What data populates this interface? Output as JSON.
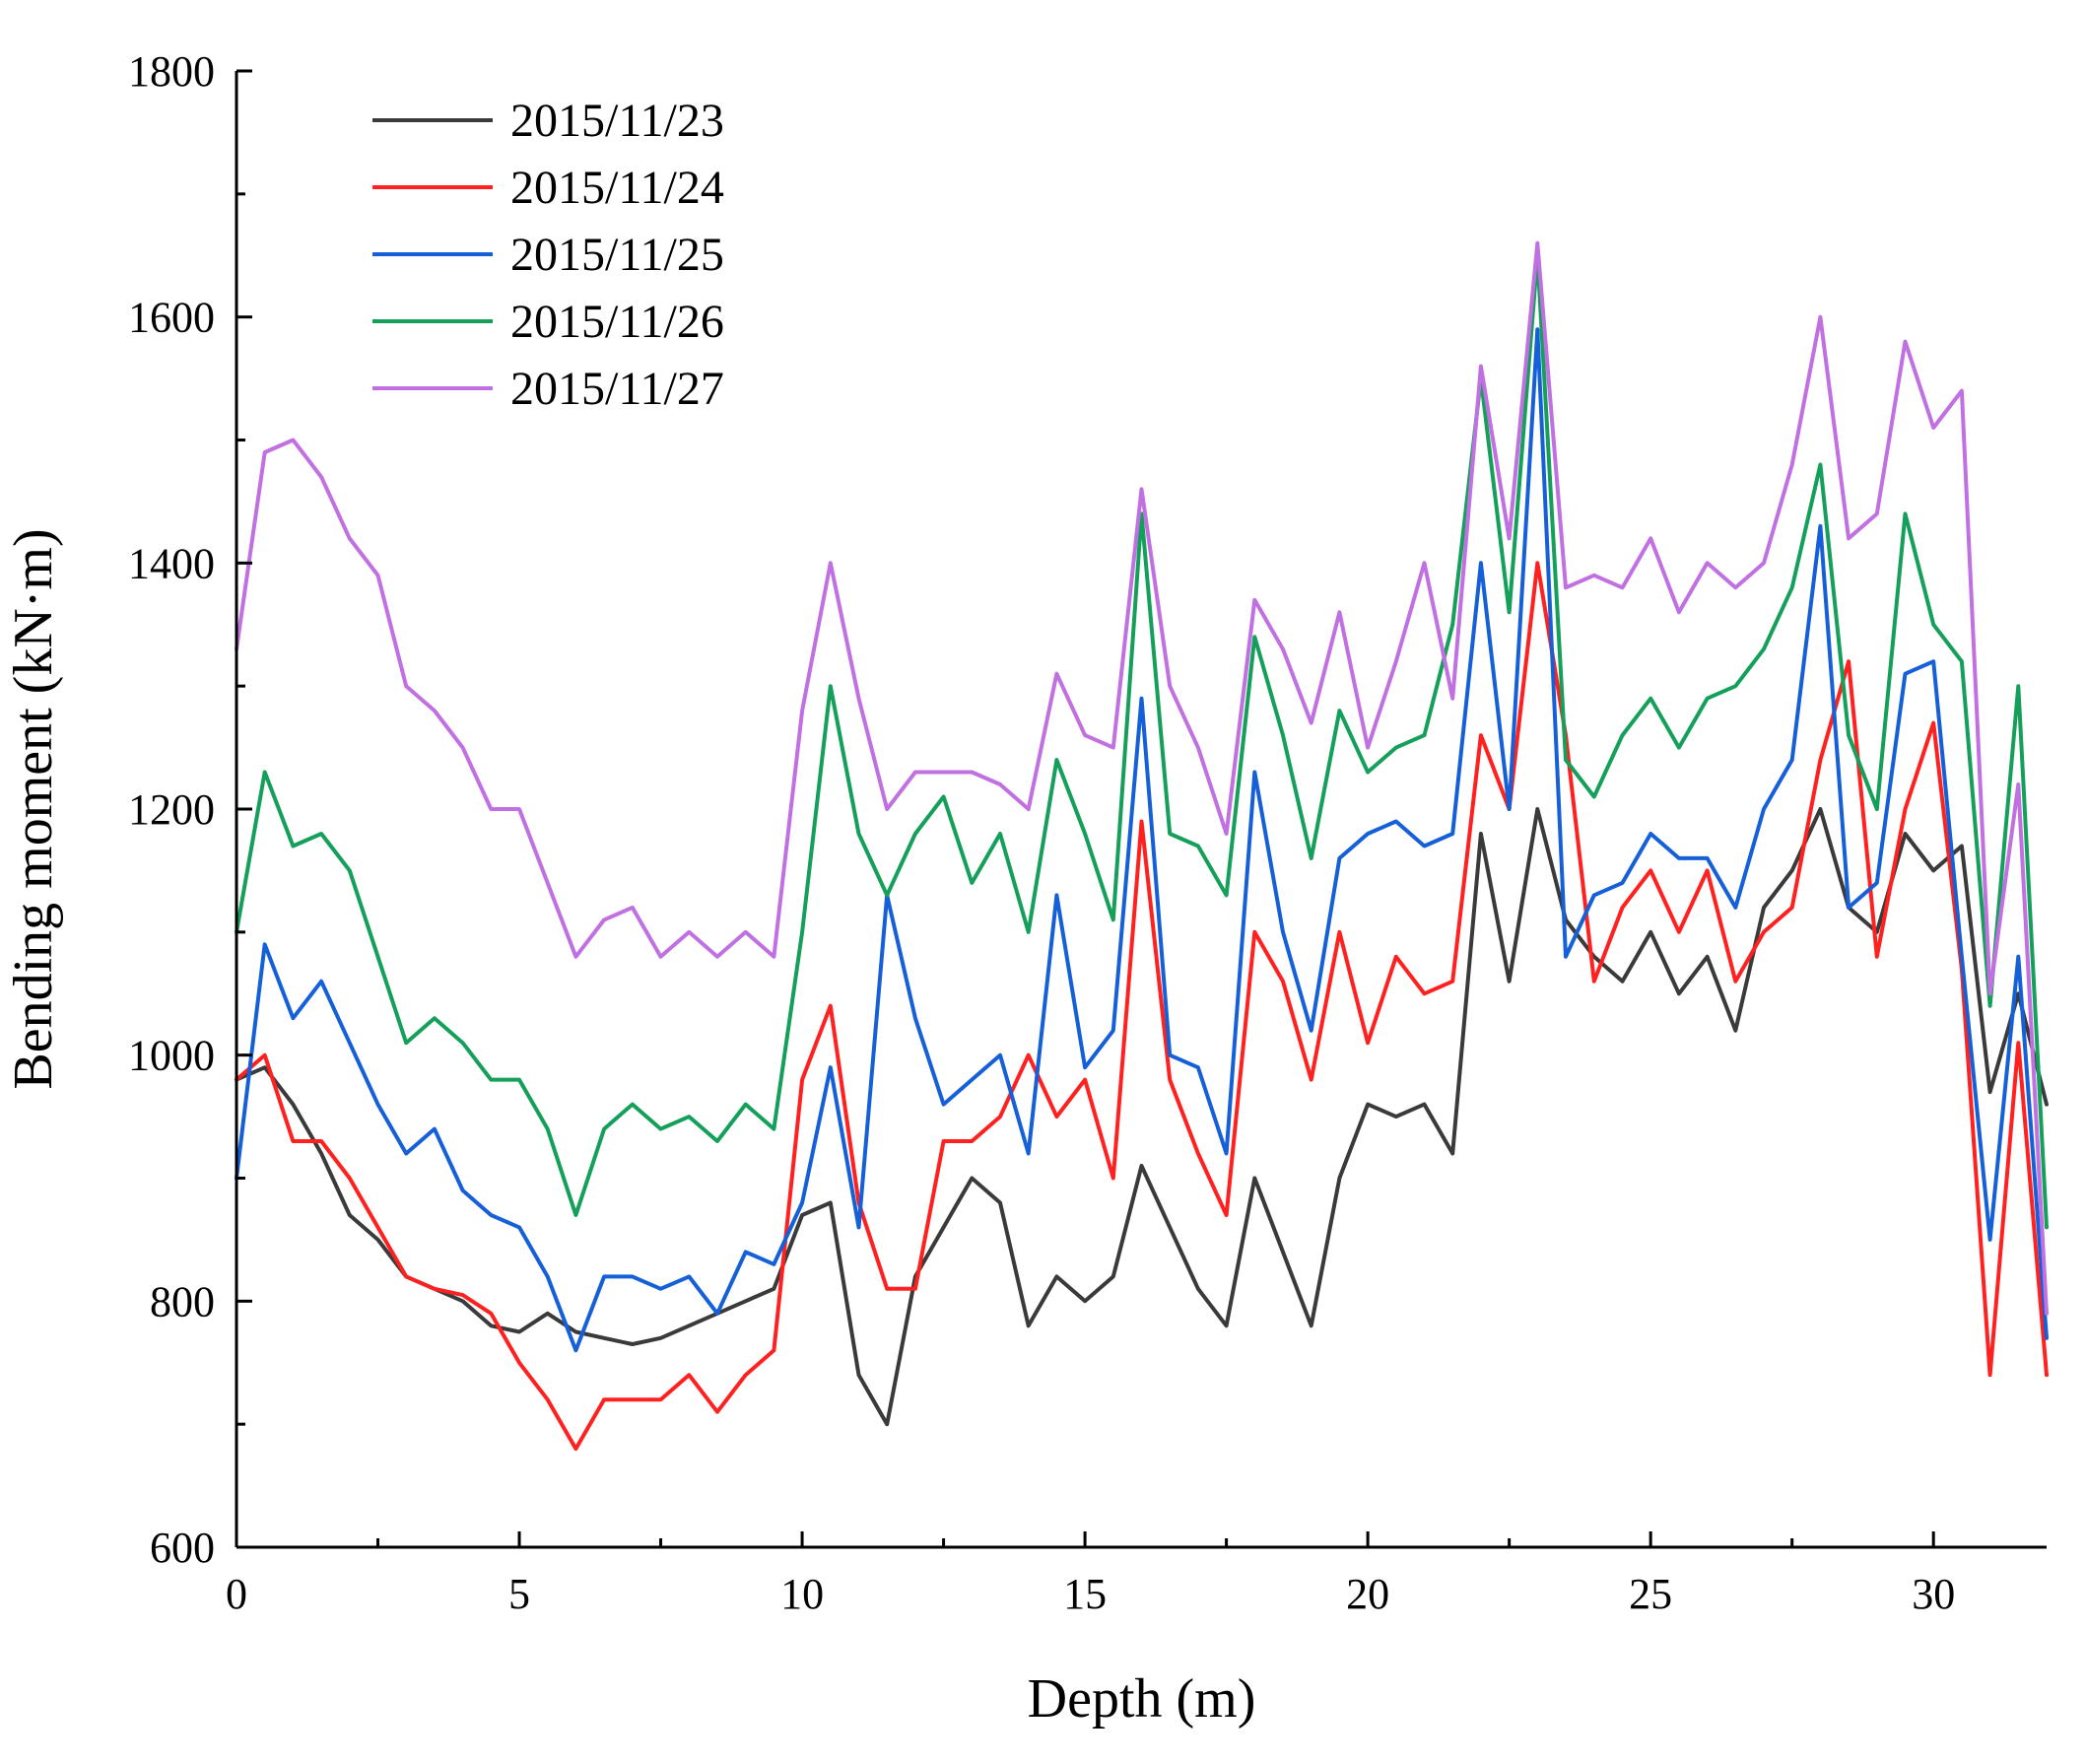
{
  "chart_data": {
    "type": "line",
    "title": "",
    "xlabel": "Depth (m)",
    "ylabel": "Bending moment (kN·m)",
    "xlim": [
      0,
      32
    ],
    "ylim": [
      600,
      1800
    ],
    "x_ticks": [
      {
        "value": 0,
        "label": "0"
      },
      {
        "value": 5,
        "label": "5"
      },
      {
        "value": 10,
        "label": "10"
      },
      {
        "value": 15,
        "label": "15"
      },
      {
        "value": 20,
        "label": "20"
      },
      {
        "value": 25,
        "label": "25"
      },
      {
        "value": 30,
        "label": "30"
      }
    ],
    "y_ticks": [
      {
        "value": 600,
        "label": "600"
      },
      {
        "value": 800,
        "label": "800"
      },
      {
        "value": 1000,
        "label": "1000"
      },
      {
        "value": 1200,
        "label": "1200"
      },
      {
        "value": 1400,
        "label": "1400"
      },
      {
        "value": 1600,
        "label": "1600"
      },
      {
        "value": 1800,
        "label": "1800"
      }
    ],
    "grid": false,
    "legend_position": "top-left",
    "x": [
      0,
      0.5,
      1,
      1.5,
      2,
      2.5,
      3,
      3.5,
      4,
      4.5,
      5,
      5.5,
      6,
      6.5,
      7,
      7.5,
      8,
      8.5,
      9,
      9.5,
      10,
      10.5,
      11,
      11.5,
      12,
      12.5,
      13,
      13.5,
      14,
      14.5,
      15,
      15.5,
      16,
      16.5,
      17,
      17.5,
      18,
      18.5,
      19,
      19.5,
      20,
      20.5,
      21,
      21.5,
      22,
      22.5,
      23,
      23.5,
      24,
      24.5,
      25,
      25.5,
      26,
      26.5,
      27,
      27.5,
      28,
      28.5,
      29,
      29.5,
      30,
      30.5,
      31,
      31.5,
      32
    ],
    "series": [
      {
        "name": "2015/11/23",
        "color": "#3a3a3a",
        "values": [
          980,
          990,
          960,
          920,
          870,
          850,
          820,
          810,
          800,
          780,
          775,
          790,
          775,
          770,
          765,
          770,
          780,
          790,
          800,
          810,
          870,
          880,
          740,
          700,
          820,
          860,
          900,
          880,
          780,
          820,
          800,
          820,
          910,
          860,
          810,
          780,
          900,
          840,
          780,
          900,
          960,
          950,
          960,
          920,
          1180,
          1060,
          1200,
          1110,
          1080,
          1060,
          1100,
          1050,
          1080,
          1020,
          1120,
          1150,
          1200,
          1120,
          1100,
          1180,
          1150,
          1170,
          970,
          1050,
          960
        ]
      },
      {
        "name": "2015/11/24",
        "color": "#ff2020",
        "values": [
          980,
          1000,
          930,
          930,
          900,
          860,
          820,
          810,
          805,
          790,
          750,
          720,
          680,
          720,
          720,
          720,
          740,
          710,
          740,
          760,
          980,
          1040,
          880,
          810,
          810,
          930,
          930,
          950,
          1000,
          950,
          980,
          900,
          1190,
          980,
          920,
          870,
          1100,
          1060,
          980,
          1100,
          1010,
          1080,
          1050,
          1060,
          1260,
          1200,
          1400,
          1260,
          1060,
          1120,
          1150,
          1100,
          1150,
          1060,
          1100,
          1120,
          1240,
          1320,
          1080,
          1200,
          1270,
          1070,
          740,
          1010,
          740
        ]
      },
      {
        "name": "2015/11/25",
        "color": "#1560d8",
        "values": [
          900,
          1090,
          1030,
          1060,
          1010,
          960,
          920,
          940,
          890,
          870,
          860,
          820,
          760,
          820,
          820,
          810,
          820,
          790,
          840,
          830,
          880,
          990,
          860,
          1130,
          1030,
          960,
          980,
          1000,
          920,
          1130,
          990,
          1020,
          1290,
          1000,
          990,
          920,
          1230,
          1100,
          1020,
          1160,
          1180,
          1190,
          1170,
          1180,
          1400,
          1200,
          1590,
          1080,
          1130,
          1140,
          1180,
          1160,
          1160,
          1120,
          1200,
          1240,
          1430,
          1120,
          1140,
          1310,
          1320,
          1080,
          850,
          1080,
          770
        ]
      },
      {
        "name": "2015/11/26",
        "color": "#14a05a",
        "values": [
          1100,
          1230,
          1170,
          1180,
          1150,
          1080,
          1010,
          1030,
          1010,
          980,
          980,
          940,
          870,
          940,
          960,
          940,
          950,
          930,
          960,
          940,
          1100,
          1300,
          1180,
          1130,
          1180,
          1210,
          1140,
          1180,
          1100,
          1240,
          1180,
          1110,
          1440,
          1180,
          1170,
          1130,
          1340,
          1260,
          1160,
          1280,
          1230,
          1250,
          1260,
          1350,
          1550,
          1360,
          1650,
          1240,
          1210,
          1260,
          1290,
          1250,
          1290,
          1300,
          1330,
          1380,
          1480,
          1260,
          1200,
          1440,
          1350,
          1320,
          1040,
          1300,
          860
        ]
      },
      {
        "name": "2015/11/27",
        "color": "#c070e0",
        "values": [
          1330,
          1490,
          1500,
          1470,
          1420,
          1390,
          1300,
          1280,
          1250,
          1200,
          1200,
          1140,
          1080,
          1110,
          1120,
          1080,
          1100,
          1080,
          1100,
          1080,
          1280,
          1400,
          1290,
          1200,
          1230,
          1230,
          1230,
          1220,
          1200,
          1310,
          1260,
          1250,
          1460,
          1300,
          1250,
          1180,
          1370,
          1330,
          1270,
          1360,
          1250,
          1320,
          1400,
          1290,
          1560,
          1420,
          1660,
          1380,
          1390,
          1380,
          1420,
          1360,
          1400,
          1380,
          1400,
          1480,
          1600,
          1420,
          1440,
          1580,
          1510,
          1540,
          1050,
          1220,
          790
        ]
      }
    ]
  }
}
